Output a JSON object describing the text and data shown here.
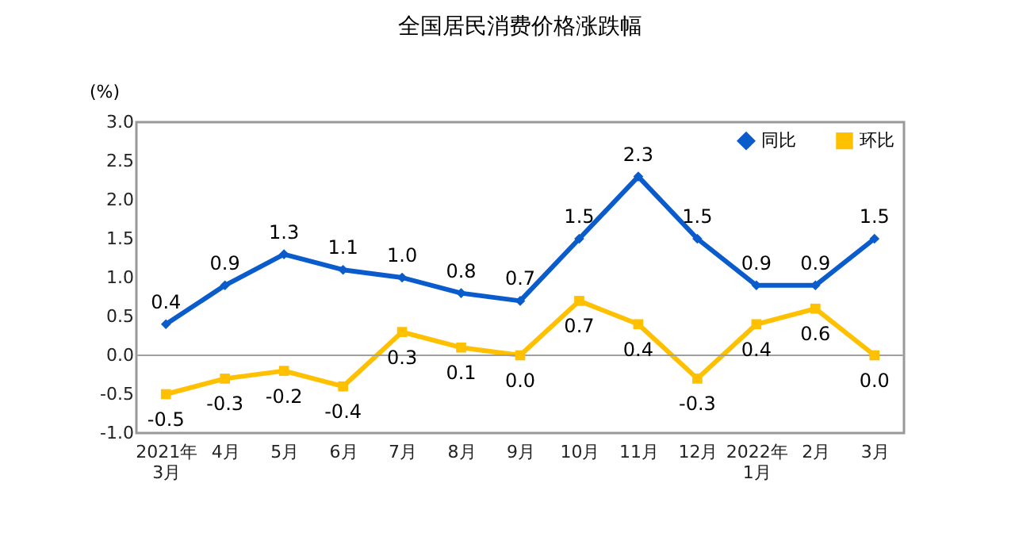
{
  "chart_data": {
    "type": "line",
    "title": "全国居民消费价格涨跌幅",
    "ylabel": "(%)",
    "categories": [
      "2021年\n3月",
      "4月",
      "5月",
      "6月",
      "7月",
      "8月",
      "9月",
      "10月",
      "11月",
      "12月",
      "2022年\n1月",
      "2月",
      "3月"
    ],
    "series": [
      {
        "name": "同比",
        "color": "#0a5ccc",
        "marker": "diamond",
        "values": [
          0.4,
          0.9,
          1.3,
          1.1,
          1.0,
          0.8,
          0.7,
          1.5,
          2.3,
          1.5,
          0.9,
          0.9,
          1.5
        ],
        "value_labels": [
          "0.4",
          "0.9",
          "1.3",
          "1.1",
          "1.0",
          "0.8",
          "0.7",
          "1.5",
          "2.3",
          "1.5",
          "0.9",
          "0.9",
          "1.5"
        ]
      },
      {
        "name": "环比",
        "color": "#ffc000",
        "marker": "square",
        "values": [
          -0.5,
          -0.3,
          -0.2,
          -0.4,
          0.3,
          0.1,
          0.0,
          0.7,
          0.4,
          -0.3,
          0.4,
          0.6,
          0.0
        ],
        "value_labels": [
          "-0.5",
          "-0.3",
          "-0.2",
          "-0.4",
          "0.3",
          "0.1",
          "0.0",
          "0.7",
          "0.4",
          "-0.3",
          "0.4",
          "0.6",
          "0.0"
        ]
      }
    ],
    "ylim": [
      -1.0,
      3.0
    ],
    "yticks": [
      {
        "value": -1,
        "label": "-1.0"
      },
      {
        "value": -0.5,
        "label": "-0.5"
      },
      {
        "value": 0,
        "label": "0.0"
      },
      {
        "value": 0.5,
        "label": "0.5"
      },
      {
        "value": 1,
        "label": "1.0"
      },
      {
        "value": 1.5,
        "label": "1.5"
      },
      {
        "value": 2,
        "label": "2.0"
      },
      {
        "value": 2.5,
        "label": "2.5"
      },
      {
        "value": 3,
        "label": "3.0"
      }
    ],
    "ref_lines": [
      {
        "axis": "y",
        "value": 0,
        "color": "#a0a0a0"
      }
    ],
    "legend": "top right",
    "grid": false,
    "line_style": "solid"
  }
}
